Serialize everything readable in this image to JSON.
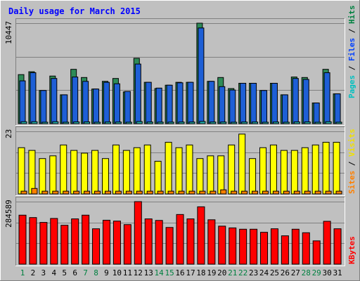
{
  "chart_data": {
    "type": "bar",
    "title": "Daily usage for March 2015",
    "categories": [
      "1",
      "2",
      "3",
      "4",
      "5",
      "6",
      "7",
      "8",
      "9",
      "10",
      "11",
      "12",
      "13",
      "14",
      "15",
      "16",
      "17",
      "18",
      "19",
      "20",
      "21",
      "22",
      "23",
      "24",
      "25",
      "26",
      "27",
      "28",
      "29",
      "30",
      "31"
    ],
    "weekend_days": [
      "1",
      "7",
      "8",
      "14",
      "15",
      "21",
      "22",
      "28",
      "29"
    ],
    "panels": [
      {
        "name": "hits-files-pages",
        "ylabel_max": "10447",
        "ymax": 10447,
        "right_label": [
          {
            "text": "Pages",
            "color": "#00c0c0"
          },
          {
            "text": " / ",
            "color": "#000000"
          },
          {
            "text": "Files",
            "color": "#0040ff"
          },
          {
            "text": " / ",
            "color": "#000000"
          },
          {
            "text": "Hits",
            "color": "#008040"
          }
        ],
        "series": [
          {
            "name": "Hits",
            "color": "#2e8b57",
            "values": [
              5100,
              5400,
              3450,
              4950,
              3000,
              5650,
              4800,
              3600,
              4400,
              4700,
              3300,
              6800,
              4300,
              3650,
              4000,
              4300,
              4300,
              10447,
              4400,
              4800,
              3650,
              4200,
              4200,
              3450,
              4200,
              3000,
              4850,
              4800,
              2150,
              5650,
              3100
            ]
          },
          {
            "name": "Files",
            "color": "#1e5fd6",
            "values": [
              4450,
              5300,
              3450,
              4700,
              3000,
              4850,
              4400,
              3600,
              4300,
              4150,
              3350,
              6200,
              4300,
              3700,
              4000,
              4250,
              4300,
              9950,
              4400,
              3850,
              3500,
              4200,
              4200,
              3450,
              4200,
              3000,
              4700,
              4600,
              2150,
              5300,
              3100
            ]
          },
          {
            "name": "Pages",
            "color": "#20b2aa",
            "values": [
              200,
              200,
              150,
              200,
              150,
              180,
              180,
              150,
              170,
              170,
              150,
              220,
              170,
              160,
              160,
              170,
              170,
              230,
              170,
              170,
              150,
              170,
              170,
              150,
              170,
              150,
              180,
              180,
              120,
              200,
              150
            ]
          }
        ]
      },
      {
        "name": "visits-sites",
        "ylabel_max": "23",
        "ymax": 23,
        "right_label": [
          {
            "text": "Sites",
            "color": "#ff8000"
          },
          {
            "text": " / ",
            "color": "#000000"
          },
          {
            "text": "Visits",
            "color": "#f0e000"
          }
        ],
        "series": [
          {
            "name": "Visits",
            "color": "#ffff00",
            "values": [
              17,
              16,
              13,
              14,
              18,
              16,
              15,
              16,
              13,
              18,
              16,
              17,
              18,
              12,
              19,
              17,
              18,
              13,
              14,
              14,
              18,
              22,
              13,
              17,
              18,
              16,
              16,
              17,
              18,
              19,
              19
            ]
          },
          {
            "name": "Sites",
            "color": "#ff8000",
            "values": [
              1,
              2,
              1,
              1,
              1,
              1,
              1,
              1,
              1,
              1,
              1,
              1,
              1,
              1,
              1,
              1,
              1,
              1,
              1,
              1.5,
              1,
              1,
              1,
              1,
              1,
              1,
              1,
              1,
              1,
              1,
              1
            ]
          }
        ]
      },
      {
        "name": "kbytes",
        "ylabel_max": "284589",
        "ymax": 284589,
        "right_label": [
          {
            "text": "KBytes",
            "color": "#ff0000"
          }
        ],
        "series": [
          {
            "name": "KBytes",
            "color": "#ff0000",
            "values": [
              223000,
              212000,
              190000,
              208000,
              177000,
              206000,
              223000,
              161000,
              200000,
              196000,
              180000,
              284589,
              206000,
              199000,
              167000,
              226000,
              206000,
              261000,
              202000,
              173000,
              165000,
              159000,
              159000,
              145000,
              161000,
              129000,
              159000,
              143000,
              106000,
              195000,
              161000
            ]
          }
        ]
      }
    ]
  }
}
